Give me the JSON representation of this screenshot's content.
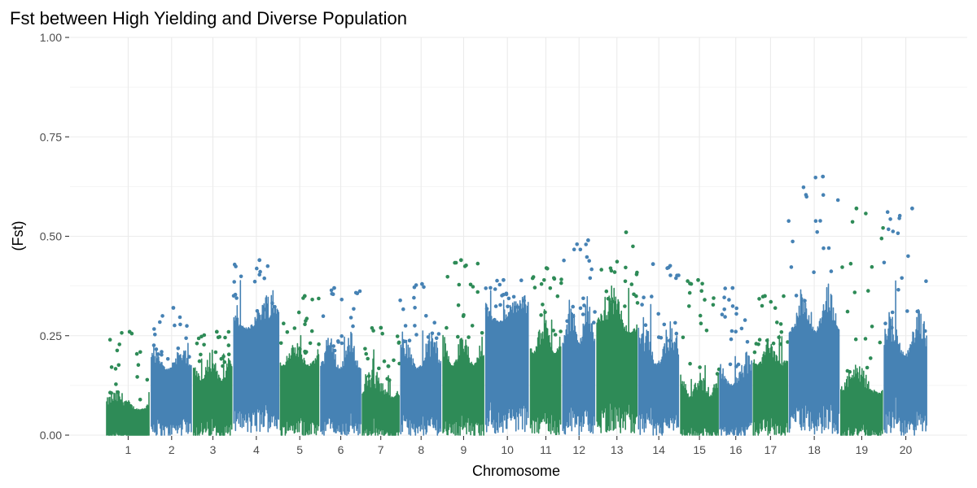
{
  "chart_data": {
    "type": "scatter",
    "title": "Fst between High Yielding and Diverse Population",
    "xlabel": "Chromosome",
    "ylabel": "(Fst)",
    "ylim": [
      0,
      1
    ],
    "yticks": [
      "0.00",
      "0.25",
      "0.50",
      "0.75",
      "1.00"
    ],
    "ytick_values": [
      0,
      0.25,
      0.5,
      0.75,
      1.0
    ],
    "grid": true,
    "legend": "none",
    "colors": {
      "odd": "#2e8b57",
      "even": "#4682b4"
    },
    "categories": [
      "1",
      "2",
      "3",
      "4",
      "5",
      "6",
      "7",
      "8",
      "9",
      "10",
      "11",
      "12",
      "13",
      "14",
      "15",
      "16",
      "17",
      "18",
      "19",
      "20"
    ],
    "segments": [
      {
        "chr": "1",
        "color": "#2e8b57",
        "start": 0,
        "end": 72,
        "base": 0.06,
        "spread": 0.04,
        "max": 0.26
      },
      {
        "chr": "2",
        "color": "#4682b4",
        "start": 72,
        "end": 140,
        "base": 0.16,
        "spread": 0.05,
        "max": 0.32
      },
      {
        "chr": "3",
        "color": "#2e8b57",
        "start": 140,
        "end": 205,
        "base": 0.13,
        "spread": 0.07,
        "max": 0.26
      },
      {
        "chr": "4",
        "color": "#4682b4",
        "start": 205,
        "end": 280,
        "base": 0.26,
        "spread": 0.08,
        "max": 0.44
      },
      {
        "chr": "5",
        "color": "#2e8b57",
        "start": 280,
        "end": 345,
        "base": 0.17,
        "spread": 0.05,
        "max": 0.35
      },
      {
        "chr": "6",
        "color": "#4682b4",
        "start": 345,
        "end": 412,
        "base": 0.16,
        "spread": 0.08,
        "max": 0.37
      },
      {
        "chr": "7",
        "color": "#2e8b57",
        "start": 412,
        "end": 474,
        "base": 0.09,
        "spread": 0.06,
        "max": 0.27
      },
      {
        "chr": "8",
        "color": "#4682b4",
        "start": 474,
        "end": 542,
        "base": 0.16,
        "spread": 0.08,
        "max": 0.38
      },
      {
        "chr": "9",
        "color": "#2e8b57",
        "start": 542,
        "end": 611,
        "base": 0.17,
        "spread": 0.07,
        "max": 0.44
      },
      {
        "chr": "10",
        "color": "#4682b4",
        "start": 611,
        "end": 683,
        "base": 0.28,
        "spread": 0.06,
        "max": 0.39
      },
      {
        "chr": "11",
        "color": "#2e8b57",
        "start": 683,
        "end": 735,
        "base": 0.2,
        "spread": 0.08,
        "max": 0.42
      },
      {
        "chr": "12",
        "color": "#4682b4",
        "start": 735,
        "end": 790,
        "base": 0.22,
        "spread": 0.1,
        "max": 0.49
      },
      {
        "chr": "13",
        "color": "#2e8b57",
        "start": 790,
        "end": 857,
        "base": 0.25,
        "spread": 0.1,
        "max": 0.51
      },
      {
        "chr": "14",
        "color": "#4682b4",
        "start": 857,
        "end": 925,
        "base": 0.17,
        "spread": 0.1,
        "max": 0.43
      },
      {
        "chr": "15",
        "color": "#2e8b57",
        "start": 925,
        "end": 988,
        "base": 0.09,
        "spread": 0.06,
        "max": 0.39
      },
      {
        "chr": "16",
        "color": "#4682b4",
        "start": 988,
        "end": 1042,
        "base": 0.12,
        "spread": 0.07,
        "max": 0.37
      },
      {
        "chr": "17",
        "color": "#2e8b57",
        "start": 1042,
        "end": 1100,
        "base": 0.17,
        "spread": 0.06,
        "max": 0.35
      },
      {
        "chr": "18",
        "color": "#4682b4",
        "start": 1100,
        "end": 1183,
        "base": 0.25,
        "spread": 0.1,
        "max": 0.65
      },
      {
        "chr": "19",
        "color": "#2e8b57",
        "start": 1183,
        "end": 1253,
        "base": 0.1,
        "spread": 0.06,
        "max": 0.57
      },
      {
        "chr": "20",
        "color": "#4682b4",
        "start": 1253,
        "end": 1325,
        "base": 0.19,
        "spread": 0.1,
        "max": 0.57
      }
    ]
  }
}
